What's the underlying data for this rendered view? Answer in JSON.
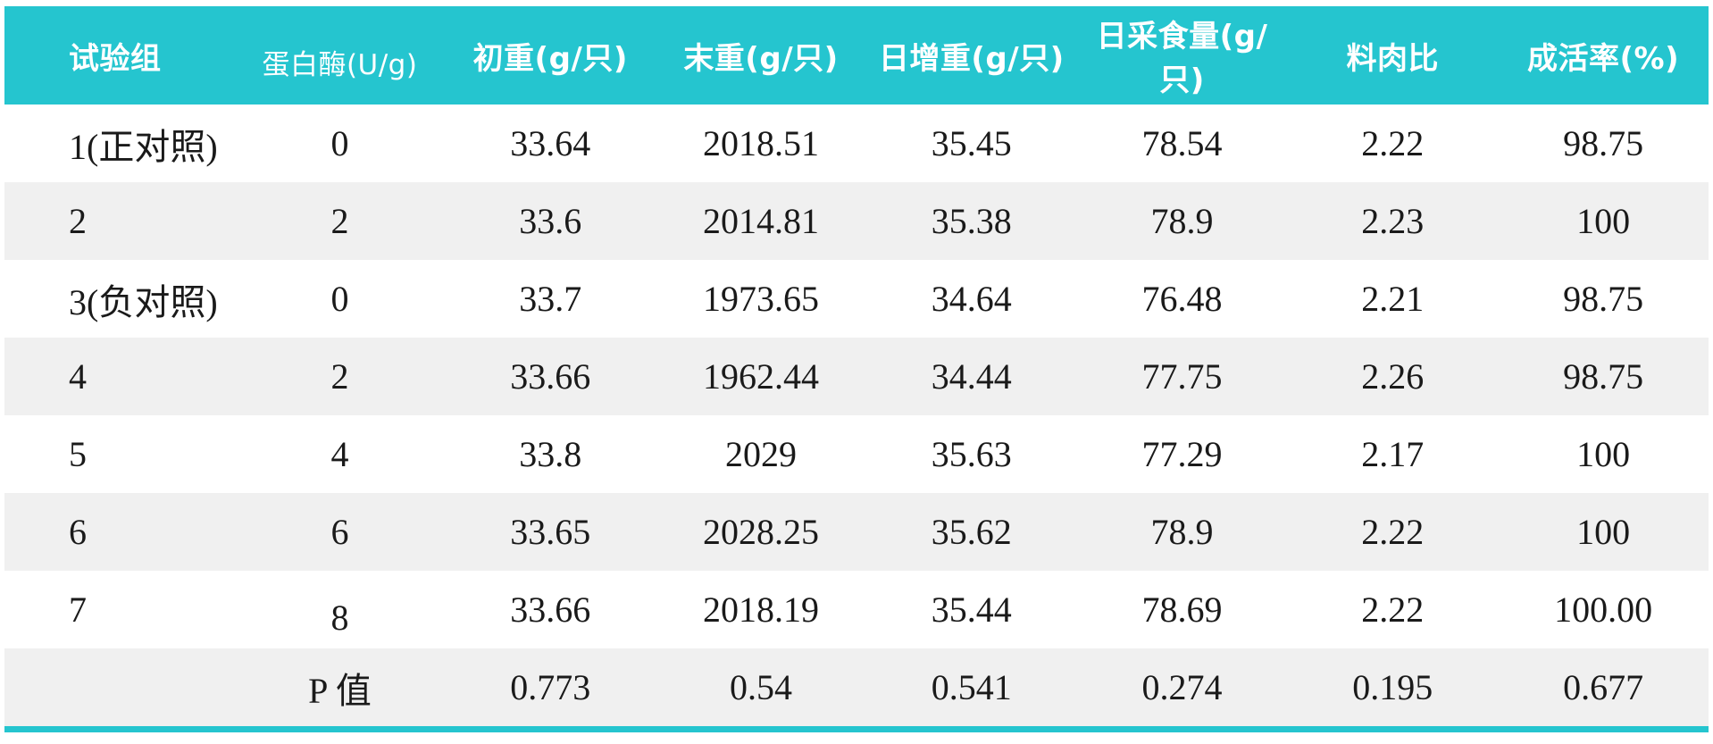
{
  "colors": {
    "header_bg": "#25c5cf",
    "header_text": "#ffffff",
    "row_bg": "#ffffff",
    "row_alt_bg": "#f0f0f0",
    "body_text": "#1a1a1a",
    "bottom_bar": "#25c5cf"
  },
  "chart_data": {
    "type": "table",
    "title": "",
    "columns": [
      {
        "key": "group",
        "label": "试验组"
      },
      {
        "key": "protease",
        "label": "蛋白酶(U/g)"
      },
      {
        "key": "initial",
        "label": "初重(g/只)"
      },
      {
        "key": "final",
        "label": "末重(g/只)"
      },
      {
        "key": "gain",
        "label": "日增重(g/只)"
      },
      {
        "key": "intake",
        "label": "日采食量(g/只)"
      },
      {
        "key": "fcr",
        "label": "料肉比"
      },
      {
        "key": "survival",
        "label": "成活率(%)"
      }
    ],
    "rows": [
      [
        "1(正对照)",
        "0",
        "33.64",
        "2018.51",
        "35.45",
        "78.54",
        "2.22",
        "98.75"
      ],
      [
        "2",
        "2",
        "33.6",
        "2014.81",
        "35.38",
        "78.9",
        "2.23",
        "100"
      ],
      [
        "3(负对照)",
        "0",
        "33.7",
        "1973.65",
        "34.64",
        "76.48",
        "2.21",
        "98.75"
      ],
      [
        "4",
        "2",
        "33.66",
        "1962.44",
        "34.44",
        "77.75",
        "2.26",
        "98.75"
      ],
      [
        "5",
        "4",
        "33.8",
        "2029",
        "35.63",
        "77.29",
        "2.17",
        "100"
      ],
      [
        "6",
        "6",
        "33.65",
        "2028.25",
        "35.62",
        "78.9",
        "2.22",
        "100"
      ],
      [
        "7",
        "8",
        "33.66",
        "2018.19",
        "35.44",
        "78.69",
        "2.22",
        "100.00"
      ],
      [
        "",
        "P 值",
        "0.773",
        "0.54",
        "0.541",
        "0.274",
        "0.195",
        "0.677"
      ]
    ]
  }
}
